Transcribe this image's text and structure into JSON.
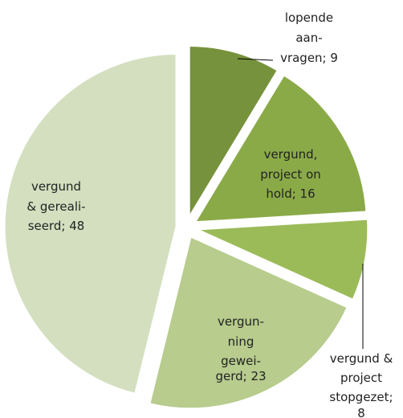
{
  "chart_data": {
    "type": "pie",
    "values": [
      9,
      16,
      8,
      23,
      48
    ],
    "value_labels": [
      [
        "lopende",
        "aan-",
        "vragen; 9"
      ],
      [
        "vergund,",
        "project on",
        "hold; 16"
      ],
      [
        "vergund &",
        "project",
        "stopgezet;",
        "8"
      ],
      [
        "vergun-",
        "ning",
        "gewei-",
        "gerd; 23"
      ],
      [
        "vergund",
        "& gereali-",
        "seerd; 48"
      ]
    ],
    "colors": [
      "#77923c",
      "#8aaa48",
      "#9bbb59",
      "#b7cc8d",
      "#d3dfbf"
    ],
    "start_angle": 0,
    "direction": "clockwise"
  }
}
